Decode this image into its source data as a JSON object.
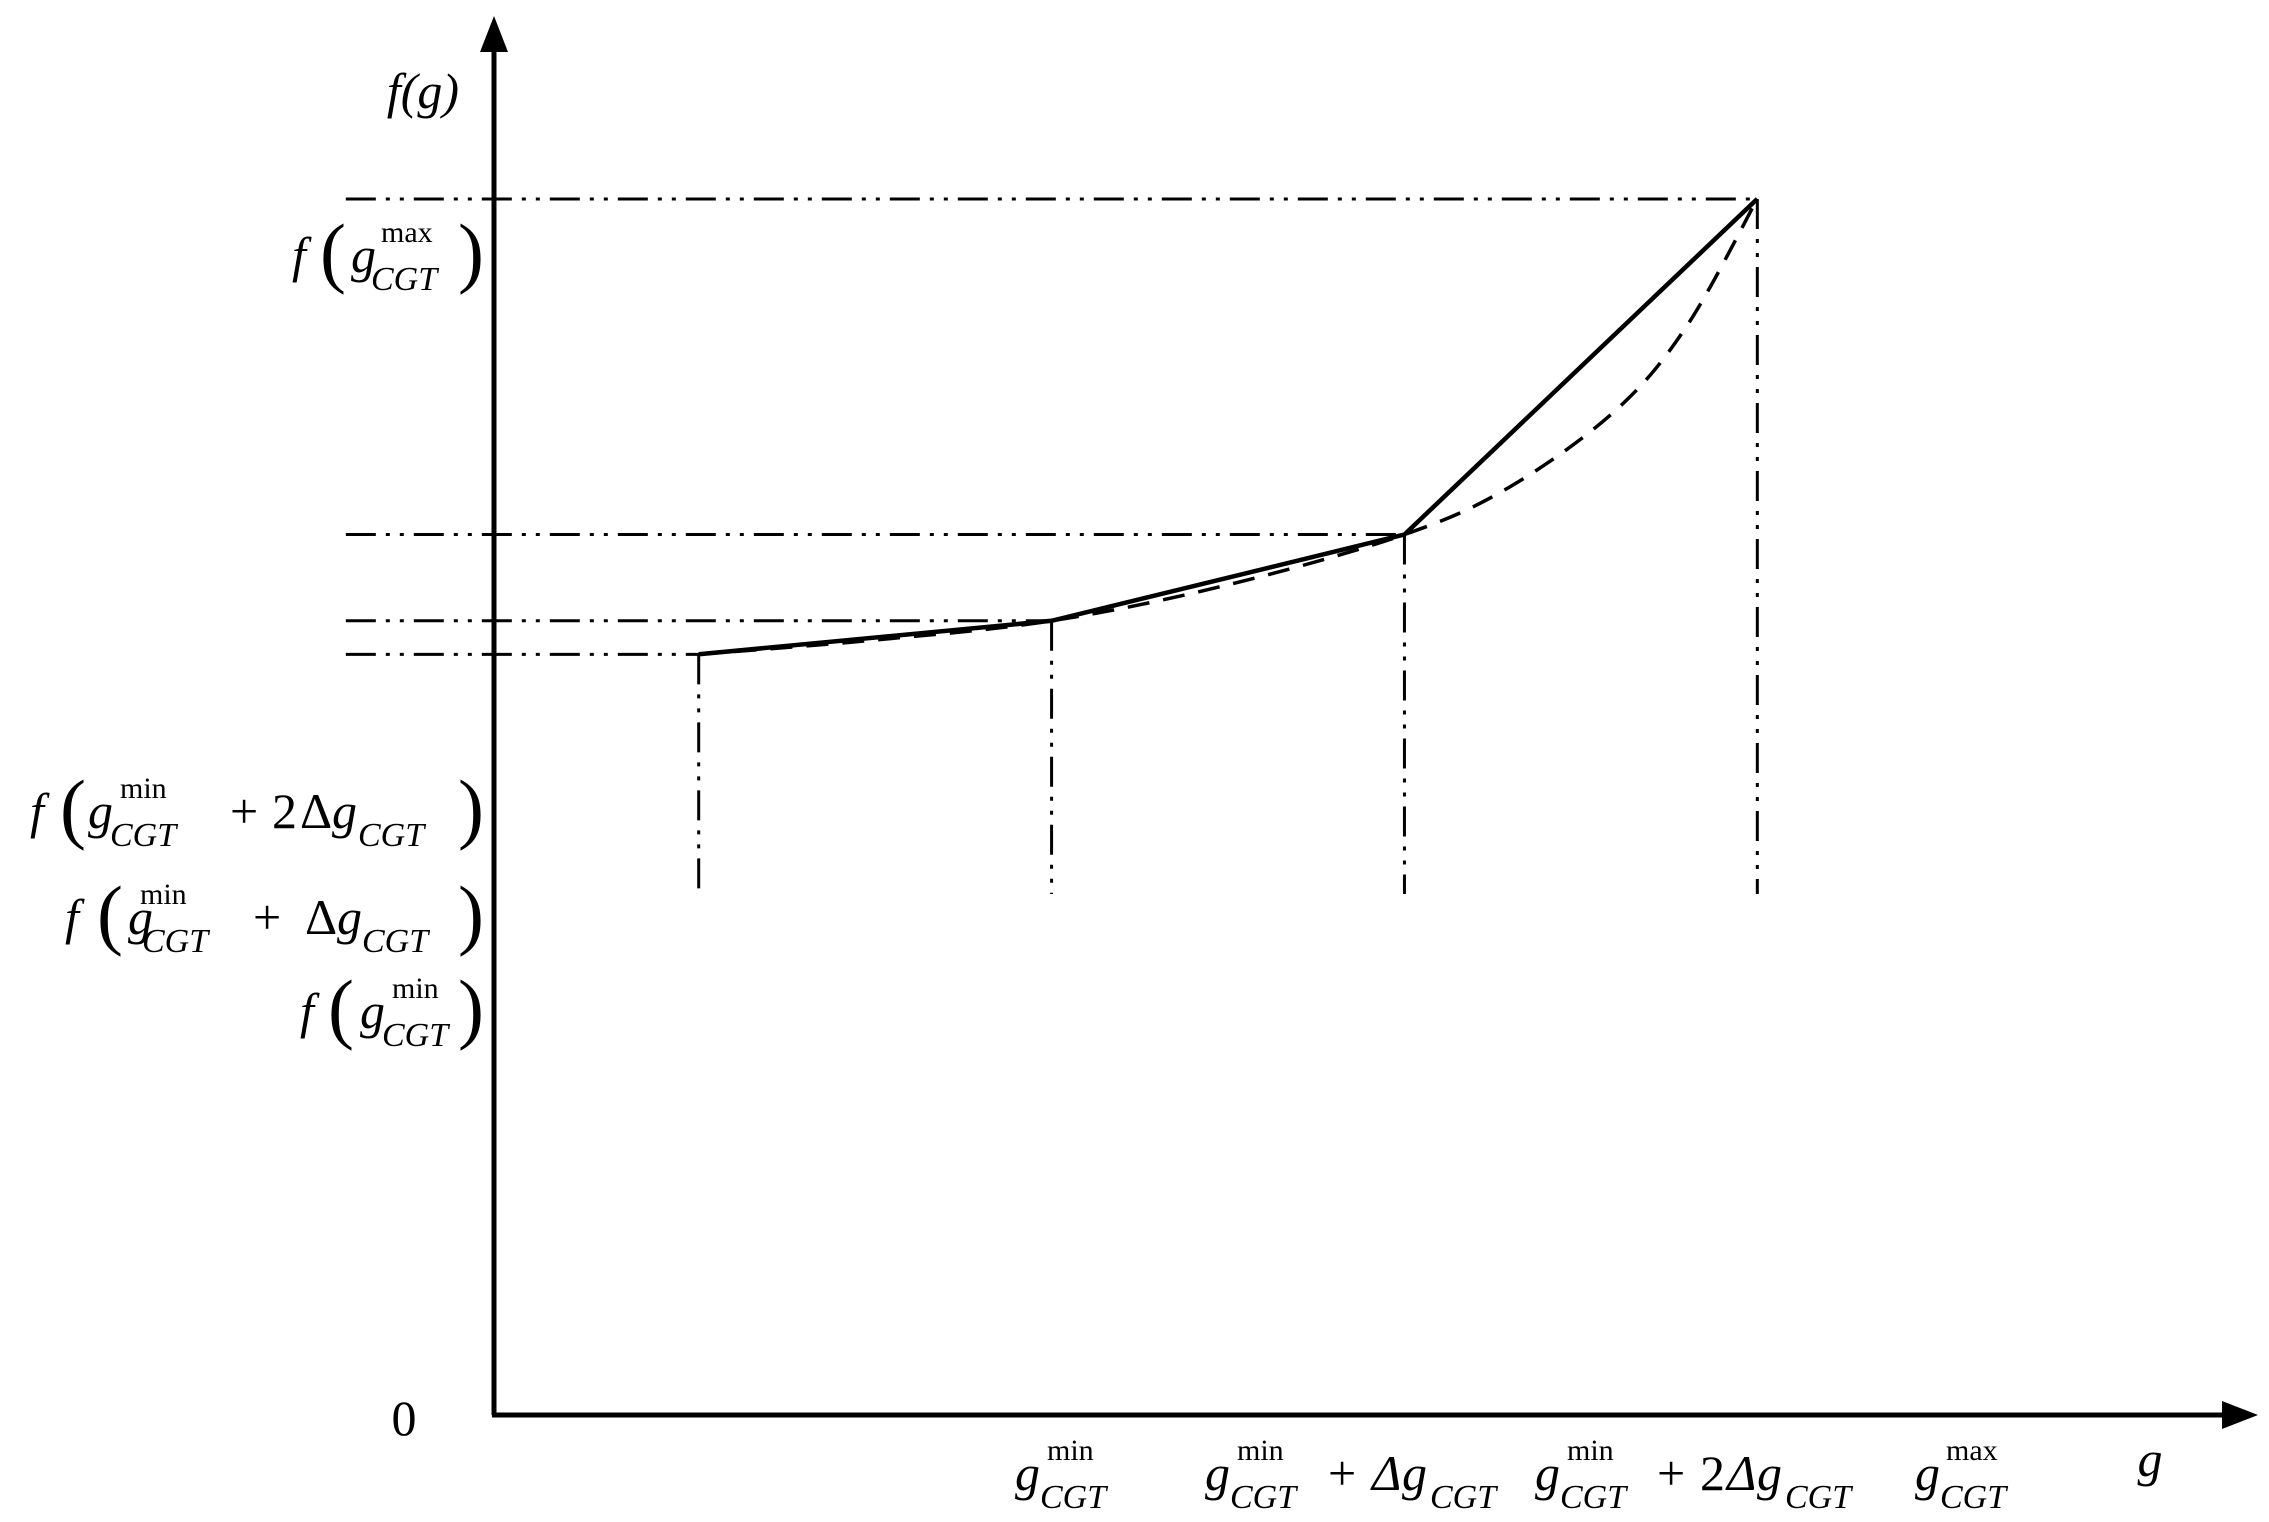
{
  "chart_data": {
    "type": "line",
    "title": "",
    "y_axis_label": "f(g)",
    "x_axis_label": "g",
    "origin_label": "0",
    "sub": "CGT",
    "sup_min": "min",
    "sup_max": "max",
    "plus": "+",
    "two": "2",
    "delta": "Δ",
    "f": "f",
    "g": "g",
    "x_ticks": [
      {
        "key": "min",
        "x": 1
      },
      {
        "key": "min_plus_delta",
        "x": 2
      },
      {
        "key": "min_plus_2delta",
        "x": 3
      },
      {
        "key": "max",
        "x": 4
      }
    ],
    "series": [
      {
        "style": "solid",
        "x": [
          1,
          2,
          3,
          4
        ],
        "y": [
          1,
          1.14,
          1.5,
          2.9
        ]
      },
      {
        "style": "dashed",
        "x": [
          1,
          1.5,
          2,
          2.5,
          3,
          3.3,
          3.6,
          3.8,
          4
        ],
        "y": [
          1,
          1.06,
          1.14,
          1.29,
          1.5,
          1.7,
          2.02,
          2.37,
          2.9
        ]
      }
    ],
    "xlim": [
      -0.98,
      5.45
    ],
    "ylim": [
      -2.62,
      3.73
    ],
    "grid": false,
    "legend": "none"
  }
}
